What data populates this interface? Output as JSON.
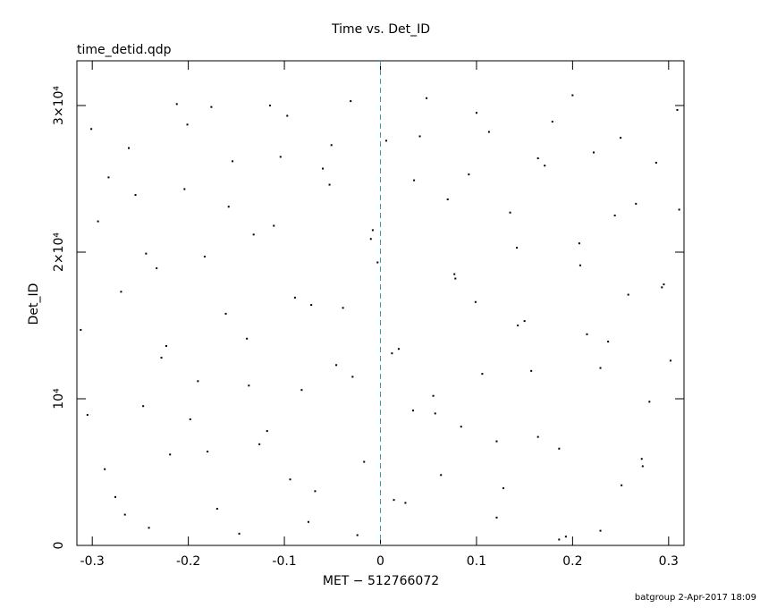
{
  "chart_data": {
    "type": "scatter",
    "title": "Time vs. Det_ID",
    "subtitle": "time_detid.qdp",
    "x_label": "MET − 512766072",
    "y_label": "Det_ID",
    "footer": "batgroup  2-Apr-2017 18:09",
    "color": "#000000",
    "xlim": [
      -0.316,
      0.316
    ],
    "ylim": [
      0,
      33050
    ],
    "xticks": [
      -0.3,
      -0.2,
      -0.1,
      0,
      0.1,
      0.2,
      0.3
    ],
    "yticks": [
      0,
      {
        "value": 10000,
        "label": "10⁴"
      },
      {
        "value": 20000,
        "label": "2×10⁴"
      },
      {
        "value": 30000,
        "label": "3×10⁴"
      }
    ],
    "vline": {
      "x": 0,
      "color": "#3a9fa8"
    },
    "x": [
      -0.301,
      -0.287,
      -0.27,
      -0.255,
      -0.241,
      -0.228,
      -0.212,
      -0.198,
      -0.183,
      -0.17,
      -0.154,
      -0.139,
      -0.126,
      -0.111,
      -0.097,
      -0.082,
      -0.068,
      -0.053,
      -0.039,
      -0.024,
      -0.01,
      0.006,
      0.019,
      0.034,
      0.048,
      0.063,
      0.077,
      0.092,
      0.106,
      0.121,
      0.135,
      0.15,
      0.164,
      0.179,
      0.193,
      0.208,
      0.222,
      0.237,
      0.251,
      0.266,
      0.28,
      0.295,
      0.309,
      -0.312,
      -0.294,
      -0.276,
      -0.262,
      -0.247,
      -0.233,
      -0.219,
      -0.204,
      -0.19,
      -0.176,
      -0.161,
      -0.147,
      -0.132,
      -0.118,
      -0.104,
      -0.089,
      -0.075,
      -0.06,
      -0.046,
      -0.031,
      -0.017,
      -0.003,
      0.012,
      0.026,
      0.041,
      0.055,
      0.07,
      0.084,
      0.099,
      0.113,
      0.128,
      0.142,
      0.157,
      0.171,
      0.186,
      0.2,
      0.215,
      0.229,
      0.244,
      0.258,
      0.273,
      0.287,
      0.302,
      -0.305,
      -0.283,
      -0.266,
      -0.244,
      -0.223,
      -0.201,
      -0.18,
      -0.158,
      -0.137,
      -0.115,
      -0.094,
      -0.072,
      -0.051,
      -0.029,
      -0.008,
      0.014,
      0.035,
      0.057,
      0.078,
      0.1,
      0.121,
      0.143,
      0.164,
      0.186,
      0.207,
      0.229,
      0.25,
      0.272,
      0.293,
      0.311
    ],
    "values": [
      28400,
      5200,
      17300,
      23900,
      1200,
      12800,
      30100,
      8600,
      19700,
      2500,
      26200,
      14100,
      6900,
      21800,
      29300,
      10600,
      3700,
      24600,
      16200,
      700,
      20900,
      27600,
      13400,
      9200,
      30500,
      4800,
      18500,
      25300,
      11700,
      1900,
      22700,
      15300,
      7400,
      28900,
      600,
      19100,
      26800,
      13900,
      4100,
      23300,
      9800,
      17800,
      29700,
      14700,
      22100,
      3300,
      27100,
      9500,
      18900,
      6200,
      24300,
      11200,
      29900,
      15800,
      800,
      21200,
      7800,
      26500,
      16900,
      1600,
      25700,
      12300,
      30300,
      5700,
      19300,
      13100,
      2900,
      27900,
      10200,
      23600,
      8100,
      16600,
      28200,
      3900,
      20300,
      11900,
      25900,
      6600,
      30700,
      14400,
      1000,
      22500,
      17100,
      5400,
      26100,
      12600,
      8900,
      25100,
      2100,
      19900,
      13600,
      28700,
      6400,
      23100,
      10900,
      30000,
      4500,
      16400,
      27300,
      11500,
      21500,
      3100,
      24900,
      9000,
      18200,
      29500,
      7100,
      15000,
      26400,
      400,
      20600,
      12100,
      27800,
      5900,
      17600,
      22900
    ]
  }
}
